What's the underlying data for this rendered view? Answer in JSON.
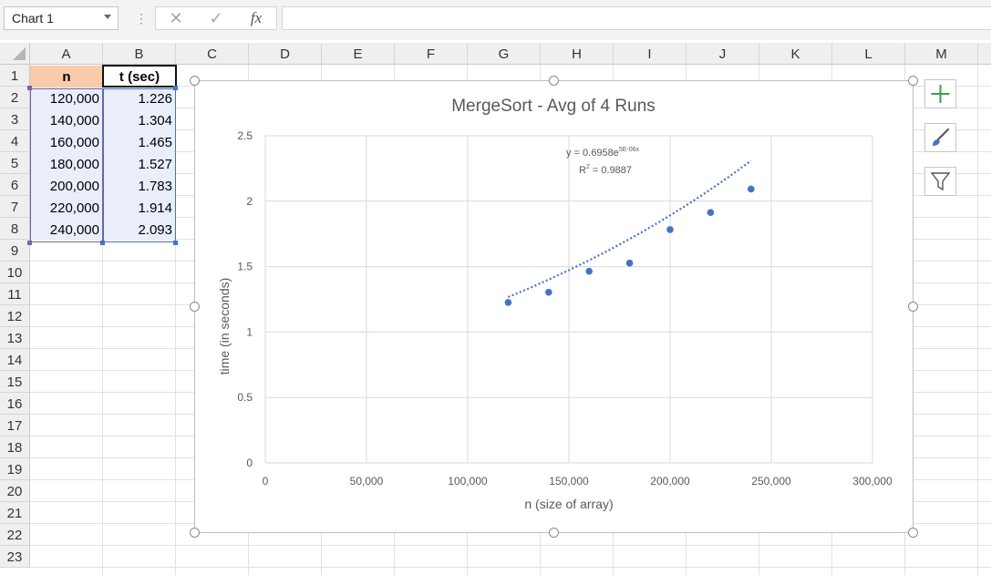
{
  "namebox": {
    "value": "Chart 1"
  },
  "formula_bar": {
    "cancel_glyph": "✕",
    "enter_glyph": "✓",
    "fx_label": "fx",
    "value": ""
  },
  "columns": [
    "A",
    "B",
    "C",
    "D",
    "E",
    "F",
    "G",
    "H",
    "I",
    "J",
    "K",
    "L",
    "M"
  ],
  "rows": [
    "1",
    "2",
    "3",
    "4",
    "5",
    "6",
    "7",
    "8",
    "9",
    "10",
    "11",
    "12",
    "13",
    "14",
    "15",
    "16",
    "17",
    "18",
    "19",
    "20",
    "21",
    "22",
    "23"
  ],
  "table": {
    "headers": [
      "n",
      "t (sec)"
    ],
    "rows": [
      [
        "120,000",
        "1.226"
      ],
      [
        "140,000",
        "1.304"
      ],
      [
        "160,000",
        "1.465"
      ],
      [
        "180,000",
        "1.527"
      ],
      [
        "200,000",
        "1.783"
      ],
      [
        "220,000",
        "1.914"
      ],
      [
        "240,000",
        "2.093"
      ]
    ]
  },
  "colors": {
    "header_fill_n": "#f8cbad",
    "data_fill": "#e9eefa",
    "series": "#4472c4",
    "accent_green": "#3aa04a"
  },
  "side_buttons": [
    "add-chart-element-icon",
    "chart-styles-brush-icon",
    "chart-filters-funnel-icon"
  ],
  "chart_data": {
    "type": "scatter",
    "title": "MergeSort - Avg of 4 Runs",
    "xlabel": "n (size of array)",
    "ylabel": "time (in seconds)",
    "xlim": [
      0,
      300000
    ],
    "ylim": [
      0,
      2.5
    ],
    "x_ticks": [
      0,
      50000,
      100000,
      150000,
      200000,
      250000,
      300000
    ],
    "x_tick_labels": [
      "0",
      "50,000",
      "100,000",
      "150,000",
      "200,000",
      "250,000",
      "300,000"
    ],
    "y_ticks": [
      0,
      0.5,
      1,
      1.5,
      2,
      2.5
    ],
    "y_tick_labels": [
      "0",
      "0.5",
      "1",
      "1.5",
      "2",
      "2.5"
    ],
    "grid": true,
    "series": [
      {
        "x": [
          120000,
          140000,
          160000,
          180000,
          200000,
          220000,
          240000
        ],
        "y": [
          1.226,
          1.304,
          1.465,
          1.527,
          1.783,
          1.914,
          2.093
        ]
      }
    ],
    "trendline": {
      "type": "exponential",
      "a": 0.6958,
      "b": 5e-06,
      "equation_prefix": "y = 0.6958e",
      "equation_exponent": "5E-06x",
      "r_squared_prefix": "R",
      "r_squared_sup": "2",
      "r_squared_value": " = 0.9887"
    }
  }
}
